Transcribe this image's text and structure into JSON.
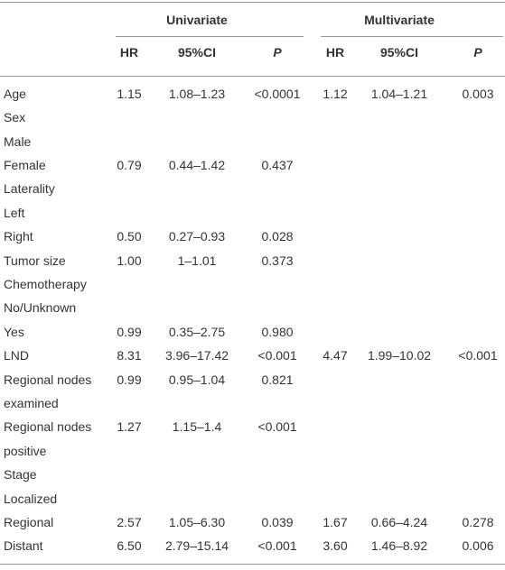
{
  "table": {
    "groups": [
      "Univariate",
      "Multivariate"
    ],
    "columns": [
      "HR",
      "95%CI",
      "P",
      "HR",
      "95%CI",
      "P"
    ],
    "rows": [
      {
        "label": "Age",
        "values": [
          "1.15",
          "1.08–1.23",
          "<0.0001",
          "1.12",
          "1.04–1.21",
          "0.003"
        ]
      },
      {
        "label": "Sex"
      },
      {
        "label": "Male"
      },
      {
        "label": "Female",
        "values": [
          "0.79",
          "0.44–1.42",
          "0.437"
        ]
      },
      {
        "label": "Laterality"
      },
      {
        "label": "Left"
      },
      {
        "label": "Right",
        "values": [
          "0.50",
          "0.27–0.93",
          "0.028"
        ]
      },
      {
        "label": "Tumor size",
        "values": [
          "1.00",
          "1–1.01",
          "0.373"
        ]
      },
      {
        "label": "Chemotherapy"
      },
      {
        "label": "No/Unknown"
      },
      {
        "label": "Yes",
        "values": [
          "0.99",
          "0.35–2.75",
          "0.980"
        ]
      },
      {
        "label": "LND",
        "values": [
          "8.31",
          "3.96–17.42",
          "<0.001",
          "4.47",
          "1.99–10.02",
          "<0.001"
        ]
      },
      {
        "label": "Regional nodes examined",
        "values": [
          "0.99",
          "0.95–1.04",
          "0.821"
        ]
      },
      {
        "label": "Regional nodes positive",
        "values": [
          "1.27",
          "1.15–1.4",
          "<0.001"
        ]
      },
      {
        "label": "Stage"
      },
      {
        "label": "Localized"
      },
      {
        "label": "Regional",
        "values": [
          "2.57",
          "1.05–6.30",
          "0.039",
          "1.67",
          "0.66–4.24",
          "0.278"
        ]
      },
      {
        "label": "Distant",
        "values": [
          "6.50",
          "2.79–15.14",
          "<0.001",
          "3.60",
          "1.46–8.92",
          "0.006"
        ]
      }
    ]
  }
}
